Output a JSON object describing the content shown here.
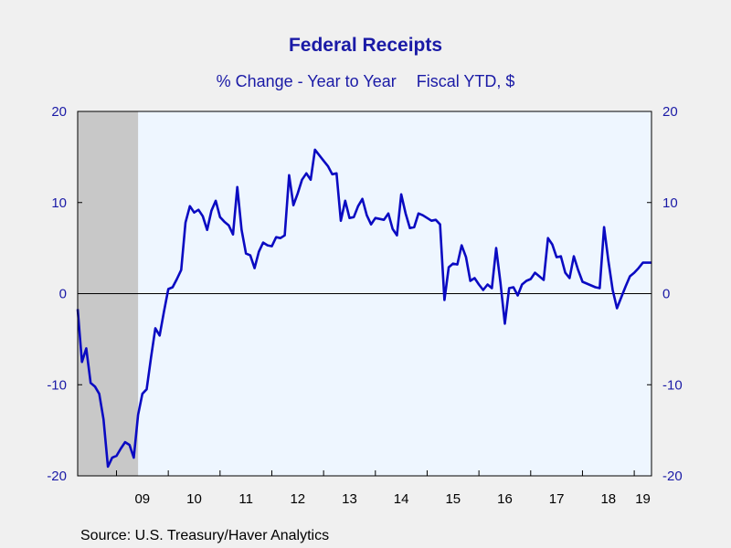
{
  "chart_data": {
    "type": "line",
    "title": "Federal Receipts",
    "subtitle_left": "% Change - Year to Year",
    "subtitle_right": "Fiscal YTD, $",
    "source": "Source:  U.S. Treasury/Haver Analytics",
    "ylim": [
      -20,
      20
    ],
    "y_ticks": [
      20,
      10,
      0,
      -10,
      -20
    ],
    "x_tick_labels": [
      "09",
      "10",
      "11",
      "12",
      "13",
      "14",
      "15",
      "16",
      "17",
      "18",
      "19"
    ],
    "xlim": [
      "2008-04",
      "2019-05"
    ],
    "recession_shading": {
      "start": "2008-04",
      "end": "2009-06",
      "color": "#c8c8c8"
    },
    "zero_line": true,
    "grid": false,
    "series": [
      {
        "color": "#0a0ac2",
        "x": [
          "2008-04",
          "2008-05",
          "2008-06",
          "2008-07",
          "2008-08",
          "2008-09",
          "2008-10",
          "2008-11",
          "2008-12",
          "2009-01",
          "2009-02",
          "2009-03",
          "2009-04",
          "2009-05",
          "2009-06",
          "2009-07",
          "2009-08",
          "2009-09",
          "2009-10",
          "2009-11",
          "2009-12",
          "2010-01",
          "2010-02",
          "2010-03",
          "2010-04",
          "2010-05",
          "2010-06",
          "2010-07",
          "2010-08",
          "2010-09",
          "2010-10",
          "2010-11",
          "2010-12",
          "2011-01",
          "2011-02",
          "2011-03",
          "2011-04",
          "2011-05",
          "2011-06",
          "2011-07",
          "2011-08",
          "2011-09",
          "2011-10",
          "2011-11",
          "2011-12",
          "2012-01",
          "2012-02",
          "2012-03",
          "2012-04",
          "2012-05",
          "2012-06",
          "2012-07",
          "2012-08",
          "2012-09",
          "2012-10",
          "2012-11",
          "2012-12",
          "2013-01",
          "2013-02",
          "2013-03",
          "2013-04",
          "2013-05",
          "2013-06",
          "2013-07",
          "2013-08",
          "2013-09",
          "2013-10",
          "2013-11",
          "2013-12",
          "2014-01",
          "2014-02",
          "2014-03",
          "2014-04",
          "2014-05",
          "2014-06",
          "2014-07",
          "2014-08",
          "2014-09",
          "2014-10",
          "2014-11",
          "2014-12",
          "2015-01",
          "2015-02",
          "2015-03",
          "2015-04",
          "2015-05",
          "2015-06",
          "2015-07",
          "2015-08",
          "2015-09",
          "2015-10",
          "2015-11",
          "2015-12",
          "2016-01",
          "2016-02",
          "2016-03",
          "2016-04",
          "2016-05",
          "2016-06",
          "2016-07",
          "2016-08",
          "2016-09",
          "2016-10",
          "2016-11",
          "2016-12",
          "2017-01",
          "2017-02",
          "2017-03",
          "2017-04",
          "2017-05",
          "2017-06",
          "2017-07",
          "2017-08",
          "2017-09",
          "2017-10",
          "2017-11",
          "2017-12",
          "2018-01",
          "2018-02",
          "2018-03",
          "2018-04",
          "2018-05",
          "2018-06",
          "2018-07",
          "2018-08",
          "2018-09",
          "2018-10",
          "2018-11",
          "2018-12",
          "2019-01",
          "2019-02",
          "2019-03",
          "2019-04",
          "2019-05"
        ],
        "values": [
          -1.7,
          -7.5,
          -6.0,
          -9.8,
          -10.2,
          -11.0,
          -13.8,
          -19.0,
          -18.0,
          -17.8,
          -17.0,
          -16.3,
          -16.6,
          -18.0,
          -13.3,
          -11.0,
          -10.5,
          -7.0,
          -3.8,
          -4.6,
          -2.0,
          0.5,
          0.7,
          1.6,
          2.6,
          7.8,
          9.6,
          8.9,
          9.2,
          8.5,
          7.0,
          9.1,
          10.2,
          8.4,
          7.9,
          7.5,
          6.5,
          11.7,
          7.0,
          4.4,
          4.2,
          2.8,
          4.6,
          5.6,
          5.3,
          5.2,
          6.2,
          6.1,
          6.4,
          13.0,
          9.7,
          11.0,
          12.5,
          13.2,
          12.5,
          15.8,
          15.2,
          14.6,
          14.0,
          13.1,
          13.2,
          8.0,
          10.2,
          8.3,
          8.4,
          9.6,
          10.4,
          8.6,
          7.6,
          8.3,
          8.2,
          8.1,
          8.8,
          7.1,
          6.4,
          10.9,
          8.8,
          7.2,
          7.3,
          8.8,
          8.6,
          8.3,
          8.0,
          8.1,
          7.6,
          -0.7,
          2.9,
          3.3,
          3.2,
          5.3,
          4.0,
          1.4,
          1.7,
          1.0,
          0.4,
          1.0,
          0.6,
          5.0,
          1.2,
          -3.3,
          0.6,
          0.7,
          -0.2,
          1.0,
          1.4,
          1.6,
          2.3,
          1.9,
          1.5,
          6.1,
          5.4,
          4.0,
          4.1,
          2.3,
          1.7,
          4.1,
          2.6,
          1.3,
          1.1,
          0.9,
          0.7,
          0.6,
          7.3,
          3.6,
          0.4,
          -1.6,
          -0.4,
          0.8,
          1.9,
          2.3,
          2.8,
          3.4,
          3.4,
          3.4
        ]
      }
    ]
  }
}
